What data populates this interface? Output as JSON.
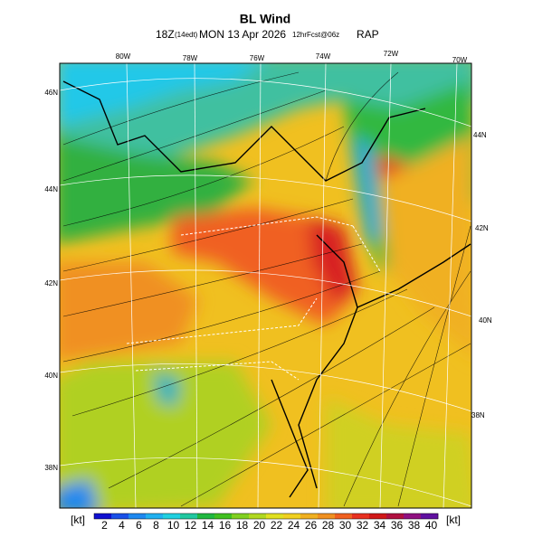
{
  "header": {
    "title": "BL Wind",
    "valid_time": "18Z",
    "local_time": "(14edt)",
    "date": "MON 13 Apr 2026",
    "forecast": "12hrFcst@06z",
    "model": "RAP"
  },
  "map": {
    "lon_labels": [
      "80W",
      "78W",
      "76W",
      "74W",
      "72W",
      "70W"
    ],
    "lat_labels_left": [
      "46N",
      "44N",
      "42N",
      "40N",
      "38N"
    ],
    "lat_labels_right": [
      "44N",
      "42N",
      "40N",
      "38N"
    ]
  },
  "colorbar": {
    "unit": "[kt]",
    "ticks": [
      2,
      4,
      6,
      8,
      10,
      12,
      14,
      16,
      18,
      20,
      22,
      24,
      26,
      28,
      30,
      32,
      34,
      36,
      38,
      40
    ],
    "colors": [
      "#1010d0",
      "#1a50e8",
      "#1e88f0",
      "#20b0f0",
      "#20d0e0",
      "#20c8a0",
      "#20b840",
      "#40c020",
      "#80d020",
      "#b0d820",
      "#e0e020",
      "#f0d020",
      "#f0b020",
      "#f09020",
      "#f06020",
      "#e83020",
      "#d01818",
      "#b01040",
      "#901080",
      "#6010a0"
    ]
  }
}
